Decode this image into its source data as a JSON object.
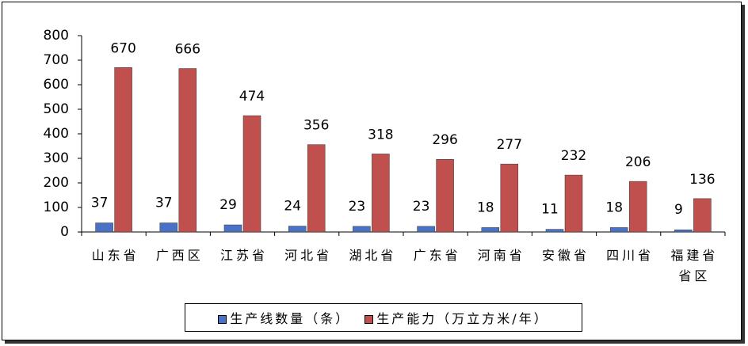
{
  "chart_data": {
    "type": "bar",
    "categories": [
      "山东省",
      "广西区",
      "江苏省",
      "河北省",
      "湖北省",
      "广东省",
      "河南省",
      "安徽省",
      "四川省",
      "福建省省区"
    ],
    "series": [
      {
        "name": "生产线数量（条）",
        "color": "#4a72c4",
        "values": [
          37,
          37,
          29,
          24,
          23,
          23,
          18,
          11,
          18,
          9
        ]
      },
      {
        "name": "生产能力（万立方米/年）",
        "color": "#c0504d",
        "values": [
          670,
          666,
          474,
          356,
          318,
          296,
          277,
          232,
          206,
          136
        ]
      }
    ],
    "ylim": [
      0,
      800
    ],
    "yticks": [
      0,
      100,
      200,
      300,
      400,
      500,
      600,
      700,
      800
    ],
    "grid": false
  }
}
